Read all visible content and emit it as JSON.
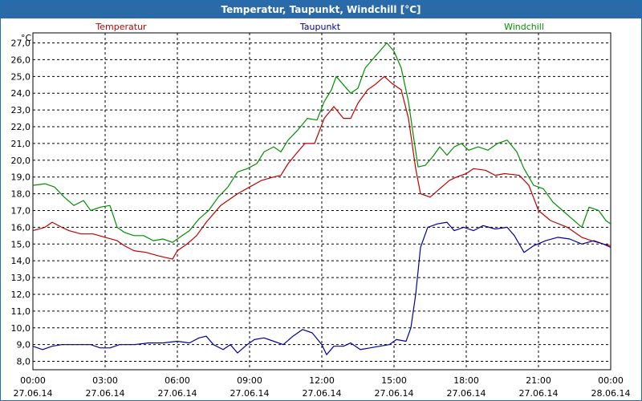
{
  "window": {
    "title": "Temperatur, Taupunkt, Windchill [°C]"
  },
  "chart_data": {
    "type": "line",
    "title": "Temperatur, Taupunkt, Windchill [°C]",
    "ylabel": "°C",
    "ylim": [
      7.5,
      27.6
    ],
    "yticks": [
      "27,0",
      "26,0",
      "25,0",
      "24,0",
      "23,0",
      "22,0",
      "21,0",
      "20,0",
      "19,0",
      "18,0",
      "17,0",
      "16,0",
      "15,0",
      "14,0",
      "13,0",
      "12,0",
      "11,0",
      "10,0",
      "9,0",
      "8,0"
    ],
    "ytick_values": [
      27,
      26,
      25,
      24,
      23,
      22,
      21,
      20,
      19,
      18,
      17,
      16,
      15,
      14,
      13,
      12,
      11,
      10,
      9,
      8
    ],
    "xlim": [
      0,
      24
    ],
    "xticks": [
      {
        "time": "00:00",
        "date": "27.06.14"
      },
      {
        "time": "03:00",
        "date": "27.06.14"
      },
      {
        "time": "06:00",
        "date": "27.06.14"
      },
      {
        "time": "09:00",
        "date": "27.06.14"
      },
      {
        "time": "12:00",
        "date": "27.06.14"
      },
      {
        "time": "15:00",
        "date": "27.06.14"
      },
      {
        "time": "18:00",
        "date": "27.06.14"
      },
      {
        "time": "21:00",
        "date": "27.06.14"
      },
      {
        "time": "00:00",
        "date": "28.06.14"
      }
    ],
    "grid": true,
    "series": [
      {
        "name": "Temperatur",
        "color": "#c00000",
        "points": [
          [
            0,
            15.8
          ],
          [
            0.5,
            16.0
          ],
          [
            0.8,
            16.3
          ],
          [
            1.2,
            16.0
          ],
          [
            1.5,
            15.8
          ],
          [
            2,
            15.6
          ],
          [
            2.5,
            15.6
          ],
          [
            3,
            15.4
          ],
          [
            3.5,
            15.2
          ],
          [
            3.8,
            14.9
          ],
          [
            4.2,
            14.6
          ],
          [
            4.7,
            14.5
          ],
          [
            5.2,
            14.3
          ],
          [
            5.8,
            14.1
          ],
          [
            6.0,
            14.6
          ],
          [
            6.4,
            15.0
          ],
          [
            6.8,
            15.5
          ],
          [
            7.2,
            16.3
          ],
          [
            7.8,
            17.3
          ],
          [
            8.5,
            18.0
          ],
          [
            9.0,
            18.4
          ],
          [
            9.5,
            18.8
          ],
          [
            10.0,
            19.0
          ],
          [
            10.3,
            19.1
          ],
          [
            10.6,
            19.8
          ],
          [
            11.0,
            20.5
          ],
          [
            11.3,
            21.0
          ],
          [
            11.7,
            21.0
          ],
          [
            12.1,
            22.5
          ],
          [
            12.5,
            23.2
          ],
          [
            12.9,
            22.5
          ],
          [
            13.2,
            22.5
          ],
          [
            13.5,
            23.4
          ],
          [
            13.9,
            24.2
          ],
          [
            14.2,
            24.5
          ],
          [
            14.6,
            25.0
          ],
          [
            14.9,
            24.6
          ],
          [
            15.3,
            24.2
          ],
          [
            15.6,
            22.5
          ],
          [
            15.9,
            19.5
          ],
          [
            16.1,
            18.0
          ],
          [
            16.5,
            17.8
          ],
          [
            16.9,
            18.3
          ],
          [
            17.3,
            18.8
          ],
          [
            17.6,
            19.0
          ],
          [
            18.0,
            19.2
          ],
          [
            18.3,
            19.5
          ],
          [
            18.8,
            19.4
          ],
          [
            19.2,
            19.1
          ],
          [
            19.6,
            19.2
          ],
          [
            20.2,
            19.1
          ],
          [
            20.6,
            18.5
          ],
          [
            21.0,
            17.0
          ],
          [
            21.5,
            16.4
          ],
          [
            22.2,
            16.0
          ],
          [
            22.8,
            15.4
          ],
          [
            23.2,
            15.2
          ],
          [
            23.7,
            15.0
          ],
          [
            24.0,
            14.9
          ]
        ]
      },
      {
        "name": "Taupunkt",
        "color": "#0000a0",
        "points": [
          [
            0,
            8.9
          ],
          [
            0.4,
            8.7
          ],
          [
            0.8,
            8.9
          ],
          [
            1.2,
            9.0
          ],
          [
            1.8,
            9.0
          ],
          [
            2.4,
            9.0
          ],
          [
            2.8,
            8.8
          ],
          [
            3.2,
            8.8
          ],
          [
            3.6,
            9.0
          ],
          [
            4.2,
            9.0
          ],
          [
            4.8,
            9.1
          ],
          [
            5.4,
            9.1
          ],
          [
            6.0,
            9.2
          ],
          [
            6.5,
            9.1
          ],
          [
            6.9,
            9.4
          ],
          [
            7.2,
            9.5
          ],
          [
            7.5,
            9.0
          ],
          [
            7.9,
            8.7
          ],
          [
            8.2,
            9.0
          ],
          [
            8.5,
            8.5
          ],
          [
            8.9,
            9.0
          ],
          [
            9.2,
            9.3
          ],
          [
            9.6,
            9.4
          ],
          [
            10.0,
            9.2
          ],
          [
            10.4,
            9.0
          ],
          [
            10.8,
            9.5
          ],
          [
            11.2,
            9.9
          ],
          [
            11.6,
            9.7
          ],
          [
            12.0,
            9.0
          ],
          [
            12.2,
            8.4
          ],
          [
            12.5,
            8.9
          ],
          [
            12.9,
            8.9
          ],
          [
            13.2,
            9.1
          ],
          [
            13.6,
            8.7
          ],
          [
            14.0,
            8.8
          ],
          [
            14.4,
            8.9
          ],
          [
            14.8,
            9.0
          ],
          [
            15.1,
            9.3
          ],
          [
            15.5,
            9.2
          ],
          [
            15.7,
            10.0
          ],
          [
            15.9,
            12.0
          ],
          [
            16.1,
            14.8
          ],
          [
            16.4,
            16.0
          ],
          [
            16.8,
            16.2
          ],
          [
            17.2,
            16.3
          ],
          [
            17.5,
            15.8
          ],
          [
            17.9,
            16.0
          ],
          [
            18.3,
            15.8
          ],
          [
            18.7,
            16.1
          ],
          [
            19.2,
            15.9
          ],
          [
            19.7,
            16.0
          ],
          [
            20.0,
            15.5
          ],
          [
            20.4,
            14.5
          ],
          [
            20.8,
            14.9
          ],
          [
            21.3,
            15.2
          ],
          [
            21.8,
            15.4
          ],
          [
            22.3,
            15.3
          ],
          [
            22.8,
            15.0
          ],
          [
            23.3,
            15.2
          ],
          [
            23.7,
            15.0
          ],
          [
            24.0,
            14.8
          ]
        ]
      },
      {
        "name": "Windchill",
        "color": "#009000",
        "points": [
          [
            0,
            18.5
          ],
          [
            0.5,
            18.6
          ],
          [
            0.9,
            18.4
          ],
          [
            1.3,
            17.8
          ],
          [
            1.7,
            17.3
          ],
          [
            2.1,
            17.6
          ],
          [
            2.4,
            17.0
          ],
          [
            2.8,
            17.2
          ],
          [
            3.2,
            17.3
          ],
          [
            3.5,
            16.0
          ],
          [
            3.8,
            15.7
          ],
          [
            4.2,
            15.5
          ],
          [
            4.6,
            15.5
          ],
          [
            5.0,
            15.2
          ],
          [
            5.4,
            15.3
          ],
          [
            5.8,
            15.1
          ],
          [
            6.1,
            15.4
          ],
          [
            6.5,
            15.8
          ],
          [
            6.9,
            16.5
          ],
          [
            7.3,
            17.0
          ],
          [
            7.7,
            17.8
          ],
          [
            8.1,
            18.4
          ],
          [
            8.5,
            19.3
          ],
          [
            8.9,
            19.5
          ],
          [
            9.3,
            19.8
          ],
          [
            9.6,
            20.5
          ],
          [
            10.0,
            20.8
          ],
          [
            10.3,
            20.5
          ],
          [
            10.6,
            21.2
          ],
          [
            11.0,
            21.8
          ],
          [
            11.4,
            22.5
          ],
          [
            11.8,
            22.4
          ],
          [
            12.1,
            23.5
          ],
          [
            12.4,
            24.2
          ],
          [
            12.6,
            25.0
          ],
          [
            12.9,
            24.5
          ],
          [
            13.2,
            24.0
          ],
          [
            13.5,
            24.3
          ],
          [
            13.8,
            25.5
          ],
          [
            14.1,
            26.0
          ],
          [
            14.4,
            26.5
          ],
          [
            14.7,
            27.0
          ],
          [
            15.0,
            26.5
          ],
          [
            15.3,
            25.5
          ],
          [
            15.6,
            23.5
          ],
          [
            15.8,
            21.5
          ],
          [
            16.0,
            19.6
          ],
          [
            16.3,
            19.7
          ],
          [
            16.6,
            20.2
          ],
          [
            16.9,
            20.8
          ],
          [
            17.2,
            20.3
          ],
          [
            17.5,
            20.8
          ],
          [
            17.8,
            21.0
          ],
          [
            18.1,
            20.6
          ],
          [
            18.5,
            20.8
          ],
          [
            18.9,
            20.6
          ],
          [
            19.3,
            21.0
          ],
          [
            19.7,
            21.2
          ],
          [
            20.1,
            20.5
          ],
          [
            20.4,
            19.5
          ],
          [
            20.8,
            18.5
          ],
          [
            21.2,
            18.3
          ],
          [
            21.6,
            17.5
          ],
          [
            22.0,
            17.0
          ],
          [
            22.4,
            16.5
          ],
          [
            22.8,
            16.0
          ],
          [
            23.1,
            17.2
          ],
          [
            23.5,
            17.0
          ],
          [
            23.8,
            16.4
          ],
          [
            24.0,
            16.2
          ]
        ]
      }
    ]
  }
}
